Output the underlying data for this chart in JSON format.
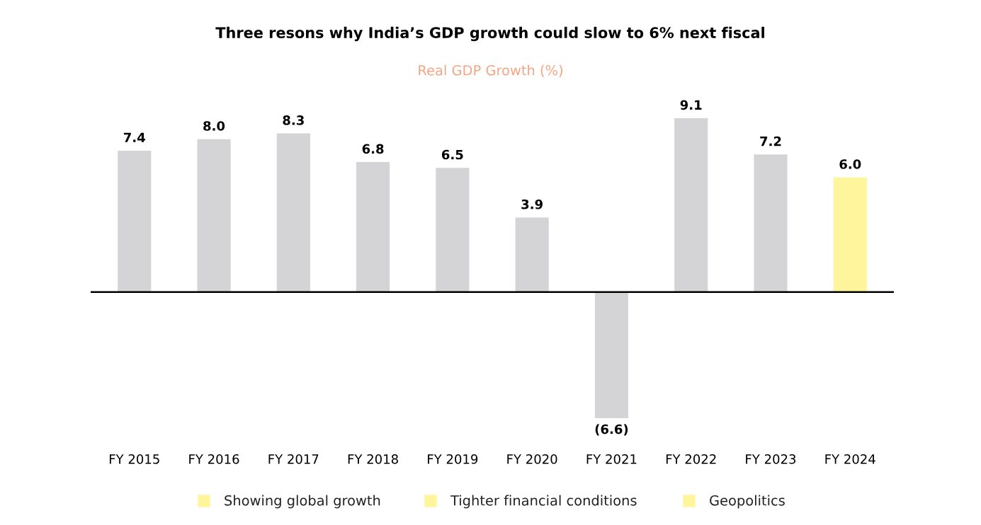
{
  "chart_data": {
    "type": "bar",
    "title": "Three resons why India’s GDP growth could slow to 6% next fiscal",
    "subtitle": "Real GDP Growth (%)",
    "categories": [
      "FY 2015",
      "FY 2016",
      "FY 2017",
      "FY 2018",
      "FY 2019",
      "FY 2020",
      "FY 2021",
      "FY 2022",
      "FY 2023",
      "FY 2024"
    ],
    "values": [
      7.4,
      8.0,
      8.3,
      6.8,
      6.5,
      3.9,
      -6.6,
      9.1,
      7.2,
      6.0
    ],
    "value_labels": [
      "7.4",
      "8.0",
      "8.3",
      "6.8",
      "6.5",
      "3.9",
      "(6.6)",
      "9.1",
      "7.2",
      "6.0"
    ],
    "colors": [
      "#d4d4d6",
      "#d4d4d6",
      "#d4d4d6",
      "#d4d4d6",
      "#d4d4d6",
      "#d4d4d6",
      "#d4d4d6",
      "#d4d4d6",
      "#d4d4d6",
      "#fff59d"
    ],
    "annotations": [
      "Showing global growth",
      "Tighter financial conditions",
      "Geopolitics"
    ],
    "grid": false,
    "legend": false
  }
}
